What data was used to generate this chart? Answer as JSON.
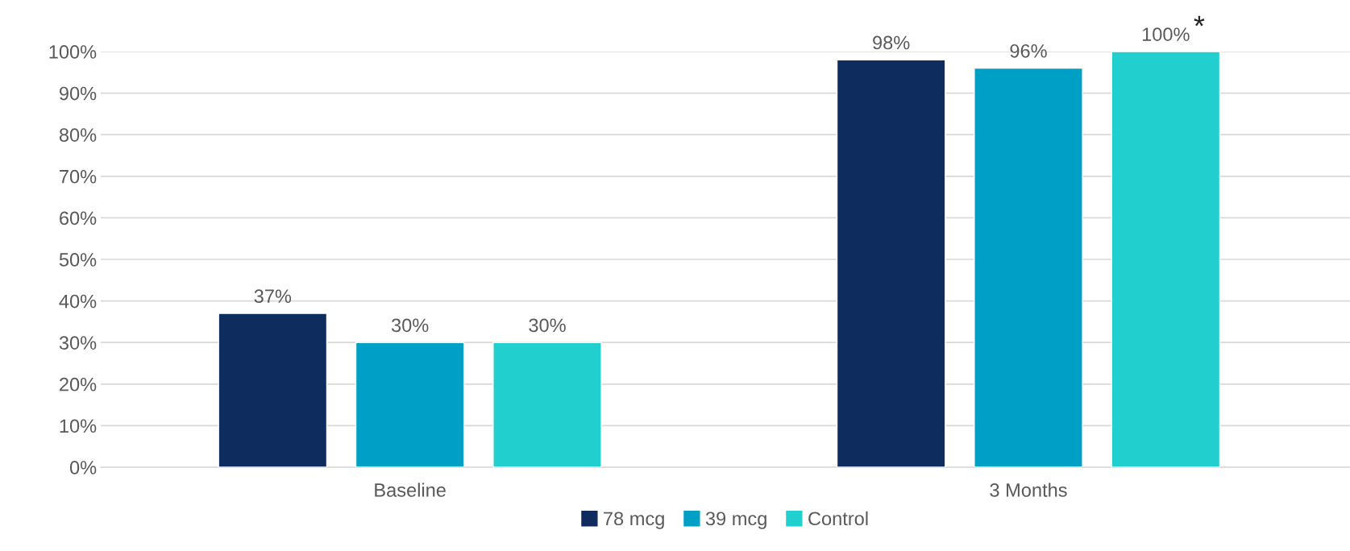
{
  "chart_data": {
    "type": "bar",
    "categories": [
      "Baseline",
      "3 Months"
    ],
    "series": [
      {
        "name": "78 mcg",
        "color": "#0e2d5e",
        "values": [
          37,
          98
        ],
        "value_labels": [
          "37%",
          "98%"
        ]
      },
      {
        "name": "39 mcg",
        "color": "#00a0c6",
        "values": [
          30,
          96
        ],
        "value_labels": [
          "30%",
          "96%"
        ]
      },
      {
        "name": "Control",
        "color": "#22cfcf",
        "values": [
          30,
          100
        ],
        "value_labels": [
          "30%",
          "100%"
        ]
      }
    ],
    "ylim": [
      0,
      100
    ],
    "yticks": [
      {
        "value": 0,
        "label": "0%"
      },
      {
        "value": 10,
        "label": "10%"
      },
      {
        "value": 20,
        "label": "20%"
      },
      {
        "value": 30,
        "label": "30%"
      },
      {
        "value": 40,
        "label": "40%"
      },
      {
        "value": 50,
        "label": "50%"
      },
      {
        "value": 60,
        "label": "60%"
      },
      {
        "value": 70,
        "label": "70%"
      },
      {
        "value": 80,
        "label": "80%"
      },
      {
        "value": 90,
        "label": "90%"
      },
      {
        "value": 100,
        "label": "100%"
      }
    ],
    "annotations": [
      "*"
    ],
    "grid": "y",
    "legend": "bottom"
  }
}
